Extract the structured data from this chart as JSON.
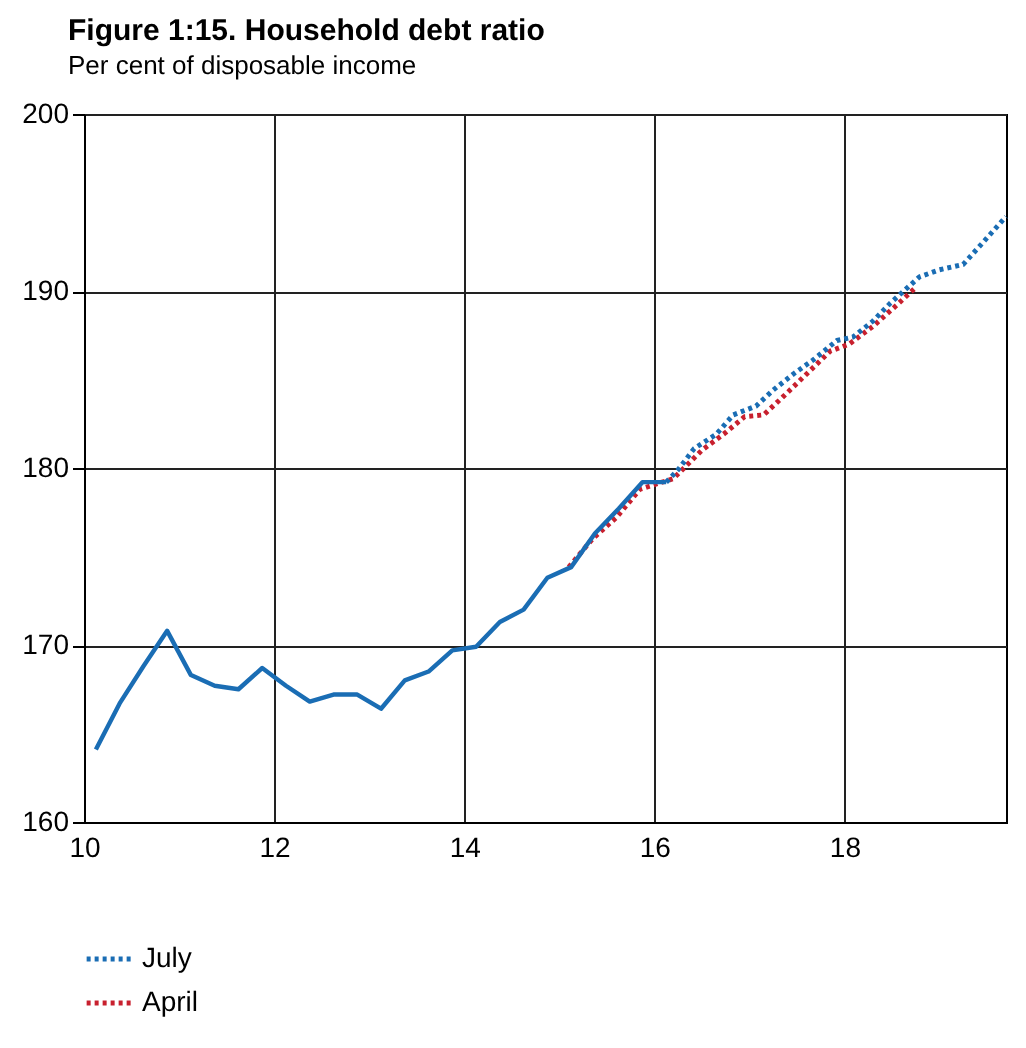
{
  "chart_data": {
    "type": "line",
    "title": "Figure 1:15. Household debt ratio",
    "subtitle": "Per cent of disposable income",
    "xlim": [
      10,
      19.7
    ],
    "xticks": [
      10,
      12,
      14,
      16,
      18
    ],
    "ylim": [
      160,
      200
    ],
    "yticks": [
      160,
      170,
      180,
      190,
      200
    ],
    "grid": true,
    "legend": "bottom left",
    "series": [
      {
        "color": "#1a6db4",
        "line_style": "solid",
        "x": [
          10.125,
          10.375,
          10.625,
          10.875,
          11.125,
          11.375,
          11.625,
          11.875,
          12.125,
          12.375,
          12.625,
          12.875,
          13.125,
          13.375,
          13.625,
          13.875,
          14.125,
          14.375,
          14.625,
          14.875,
          15.125,
          15.375,
          15.625,
          15.875,
          16.125
        ],
        "values": [
          164.1,
          166.7,
          168.8,
          170.8,
          168.3,
          167.7,
          167.5,
          168.7,
          167.7,
          166.8,
          167.2,
          167.2,
          166.4,
          168.0,
          168.5,
          169.7,
          169.9,
          171.3,
          172.0,
          173.8,
          174.4,
          176.3,
          177.7,
          179.2,
          179.2
        ]
      },
      {
        "name": "July",
        "color": "#1a6db4",
        "line_style": "dotted",
        "x": [
          16.125,
          16.25,
          16.42,
          16.65,
          16.83,
          17.07,
          17.25,
          17.46,
          17.67,
          17.92,
          18.09,
          18.3,
          18.48,
          18.79,
          19.0,
          19.25,
          19.5,
          19.7
        ],
        "values": [
          179.2,
          179.9,
          181.1,
          181.9,
          183.0,
          183.5,
          184.4,
          185.3,
          186.1,
          187.2,
          187.4,
          188.3,
          189.3,
          190.8,
          191.2,
          191.5,
          193.0,
          194.2
        ]
      },
      {
        "name": "April",
        "color": "#c8202e",
        "line_style": "dotted",
        "x": [
          15.1,
          15.35,
          15.6,
          15.85,
          16.2,
          16.5,
          16.75,
          16.95,
          17.15,
          17.35,
          17.6,
          17.85,
          18.05,
          18.3,
          18.55,
          18.75
        ],
        "values": [
          174.4,
          176.0,
          177.2,
          178.8,
          179.4,
          181.0,
          182.0,
          182.9,
          183.0,
          184.0,
          185.3,
          186.6,
          187.0,
          188.0,
          189.2,
          190.2
        ]
      }
    ]
  }
}
